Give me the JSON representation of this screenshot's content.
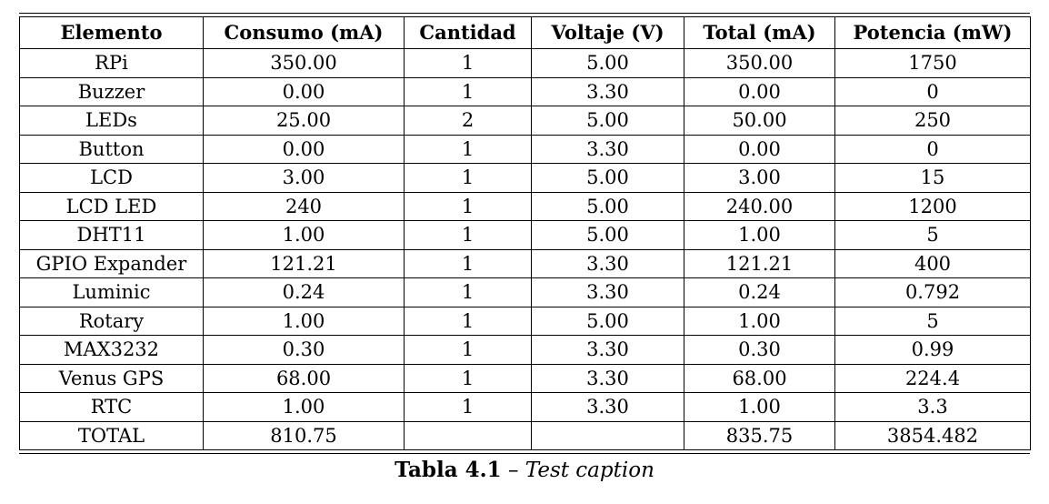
{
  "table": {
    "headers": [
      "Elemento",
      "Consumo (mA)",
      "Cantidad",
      "Voltaje (V)",
      "Total (mA)",
      "Potencia (mW)"
    ],
    "rows": [
      [
        "RPi",
        "350.00",
        "1",
        "5.00",
        "350.00",
        "1750"
      ],
      [
        "Buzzer",
        "0.00",
        "1",
        "3.30",
        "0.00",
        "0"
      ],
      [
        "LEDs",
        "25.00",
        "2",
        "5.00",
        "50.00",
        "250"
      ],
      [
        "Button",
        "0.00",
        "1",
        "3.30",
        "0.00",
        "0"
      ],
      [
        "LCD",
        "3.00",
        "1",
        "5.00",
        "3.00",
        "15"
      ],
      [
        "LCD LED",
        "240",
        "1",
        "5.00",
        "240.00",
        "1200"
      ],
      [
        "DHT11",
        "1.00",
        "1",
        "5.00",
        "1.00",
        "5"
      ],
      [
        "GPIO Expander",
        "121.21",
        "1",
        "3.30",
        "121.21",
        "400"
      ],
      [
        "Luminic",
        "0.24",
        "1",
        "3.30",
        "0.24",
        "0.792"
      ],
      [
        "Rotary",
        "1.00",
        "1",
        "5.00",
        "1.00",
        "5"
      ],
      [
        "MAX3232",
        "0.30",
        "1",
        "3.30",
        "0.30",
        "0.99"
      ],
      [
        "Venus GPS",
        "68.00",
        "1",
        "3.30",
        "68.00",
        "224.4"
      ],
      [
        "RTC",
        "1.00",
        "1",
        "3.30",
        "1.00",
        "3.3"
      ],
      [
        "TOTAL",
        "810.75",
        "",
        "",
        "835.75",
        "3854.482"
      ]
    ]
  },
  "caption": {
    "label": "Tabla 4.1",
    "separator": "–",
    "text": "Test caption"
  }
}
